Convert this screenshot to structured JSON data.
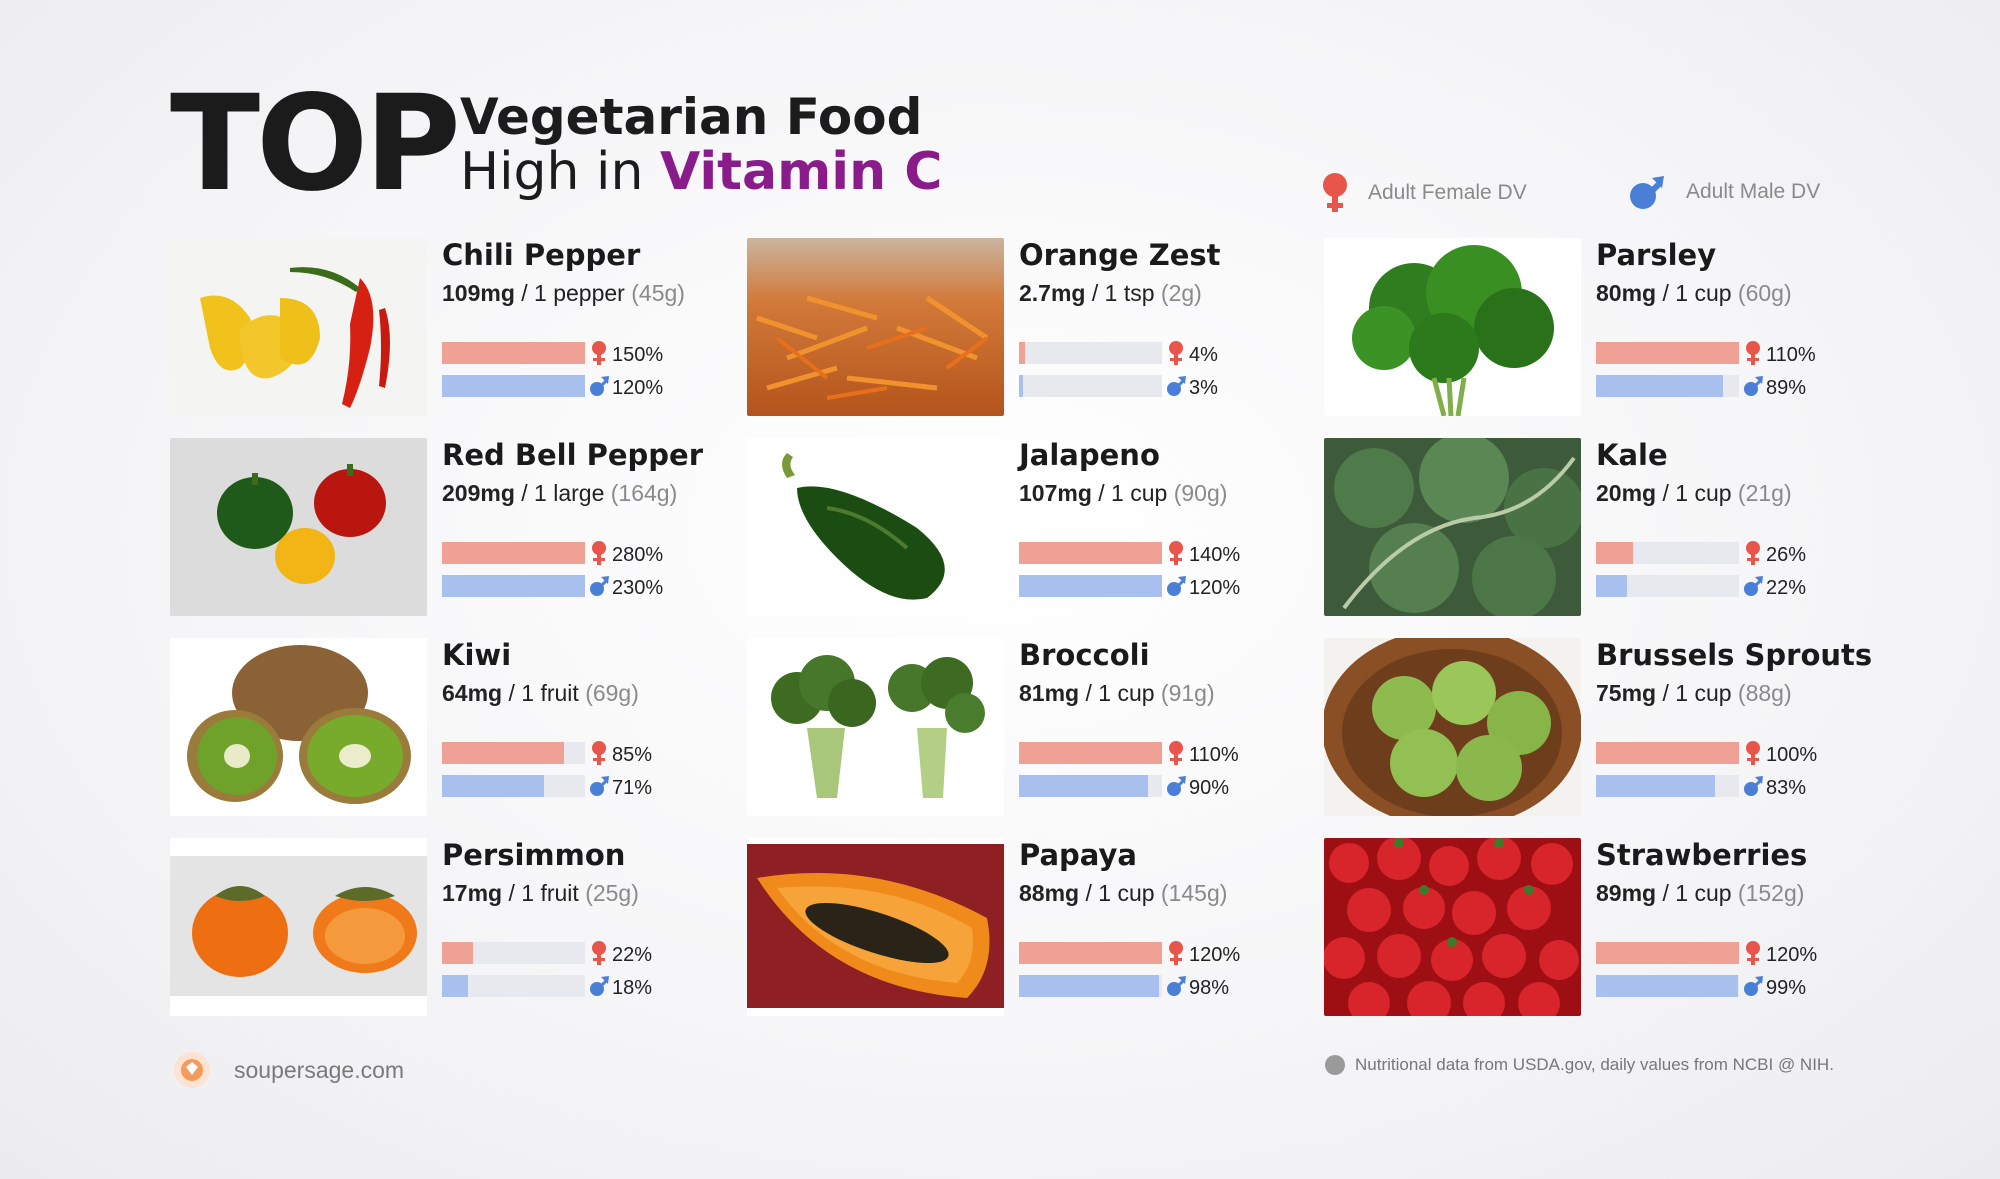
{
  "header": {
    "top_word": "TOP",
    "title_line1": "Vegetarian Food",
    "title_line2_prefix": "High in",
    "title_line2_accent": "Vitamin C"
  },
  "legend": {
    "female_label": "Adult Female DV",
    "male_label": "Adult Male DV",
    "female_icon": "female-symbol-icon",
    "male_icon": "male-symbol-icon"
  },
  "colors": {
    "accent": "#8a1b8a",
    "female_bar": "#f0a196",
    "male_bar": "#a9c0ee",
    "female_icon": "#e8554a",
    "male_icon": "#4a7fd8"
  },
  "foods": [
    {
      "name": "Chili Pepper",
      "mg": "109mg",
      "unit": "/ 1 pepper",
      "grams": "(45g)",
      "female_pct": "150%",
      "male_pct": "120%",
      "female_fill": 1.0,
      "male_fill": 1.0,
      "image": "chili-pepper-image"
    },
    {
      "name": "Orange Zest",
      "mg": "2.7mg",
      "unit": "/ 1 tsp",
      "grams": "(2g)",
      "female_pct": "4%",
      "male_pct": "3%",
      "female_fill": 0.04,
      "male_fill": 0.03,
      "image": "orange-zest-image"
    },
    {
      "name": "Parsley",
      "mg": "80mg",
      "unit": "/ 1 cup",
      "grams": "(60g)",
      "female_pct": "110%",
      "male_pct": "89%",
      "female_fill": 1.0,
      "male_fill": 0.89,
      "image": "parsley-image"
    },
    {
      "name": "Red Bell Pepper",
      "mg": "209mg",
      "unit": "/ 1 large",
      "grams": "(164g)",
      "female_pct": "280%",
      "male_pct": "230%",
      "female_fill": 1.0,
      "male_fill": 1.0,
      "image": "red-bell-pepper-image"
    },
    {
      "name": "Jalapeno",
      "mg": "107mg",
      "unit": "/ 1 cup",
      "grams": "(90g)",
      "female_pct": "140%",
      "male_pct": "120%",
      "female_fill": 1.0,
      "male_fill": 1.0,
      "image": "jalapeno-image"
    },
    {
      "name": "Kale",
      "mg": "20mg",
      "unit": "/ 1 cup",
      "grams": "(21g)",
      "female_pct": "26%",
      "male_pct": "22%",
      "female_fill": 0.26,
      "male_fill": 0.22,
      "image": "kale-image"
    },
    {
      "name": "Kiwi",
      "mg": "64mg",
      "unit": "/ 1 fruit",
      "grams": "(69g)",
      "female_pct": "85%",
      "male_pct": "71%",
      "female_fill": 0.85,
      "male_fill": 0.71,
      "image": "kiwi-image"
    },
    {
      "name": "Broccoli",
      "mg": "81mg",
      "unit": "/ 1 cup",
      "grams": "(91g)",
      "female_pct": "110%",
      "male_pct": "90%",
      "female_fill": 1.0,
      "male_fill": 0.9,
      "image": "broccoli-image"
    },
    {
      "name": "Brussels Sprouts",
      "mg": "75mg",
      "unit": "/ 1 cup",
      "grams": "(88g)",
      "female_pct": "100%",
      "male_pct": "83%",
      "female_fill": 1.0,
      "male_fill": 0.83,
      "image": "brussels-sprouts-image"
    },
    {
      "name": "Persimmon",
      "mg": "17mg",
      "unit": "/ 1 fruit",
      "grams": "(25g)",
      "female_pct": "22%",
      "male_pct": "18%",
      "female_fill": 0.22,
      "male_fill": 0.18,
      "image": "persimmon-image"
    },
    {
      "name": "Papaya",
      "mg": "88mg",
      "unit": "/ 1 cup",
      "grams": "(145g)",
      "female_pct": "120%",
      "male_pct": "98%",
      "female_fill": 1.0,
      "male_fill": 0.98,
      "image": "papaya-image"
    },
    {
      "name": "Strawberries",
      "mg": "89mg",
      "unit": "/ 1 cup",
      "grams": "(152g)",
      "female_pct": "120%",
      "male_pct": "99%",
      "female_fill": 1.0,
      "male_fill": 0.99,
      "image": "strawberries-image"
    }
  ],
  "footer": {
    "site": "soupersage.com",
    "logo_icon": "soupersage-logo-icon",
    "note": "Nutritional data from USDA.gov, daily values from NCBI @ NIH."
  }
}
